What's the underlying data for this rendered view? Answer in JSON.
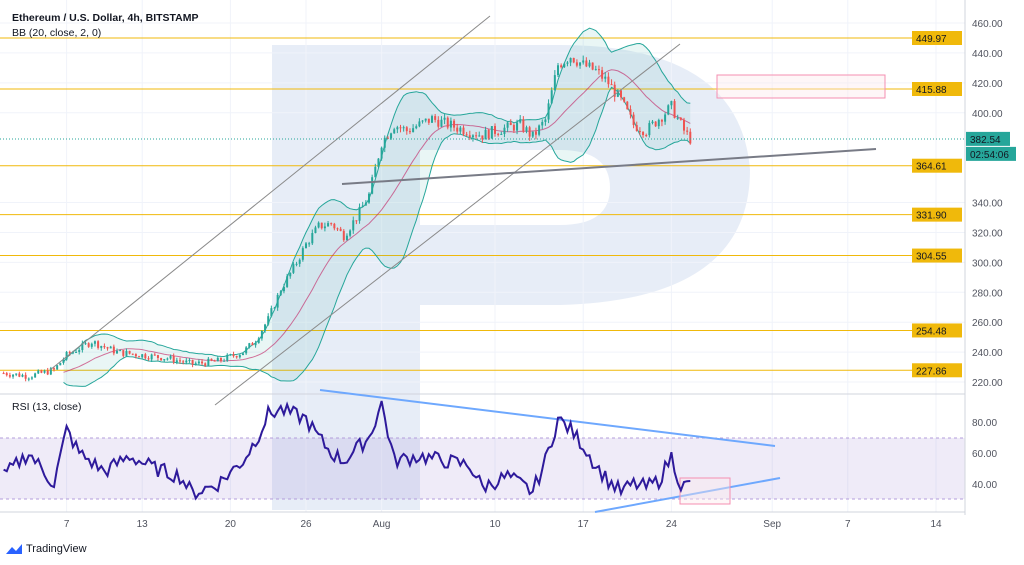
{
  "header": {
    "title": "Ethereum / U.S. Dollar, 4h, BITSTAMP",
    "indicator": "BB (20, close, 2, 0)"
  },
  "rsi_label": "RSI (13, close)",
  "brand": "TradingView",
  "colors": {
    "up": "#26a69a",
    "down": "#ef5350",
    "level": "#f0b90b",
    "bb": "#26a69a",
    "rsi": "#2e1a9b",
    "trend": "#6ea8fe"
  },
  "chart_data": {
    "type": "candlestick",
    "title": "Ethereum / U.S. Dollar, 4h, BITSTAMP",
    "ylim": [
      215,
      465
    ],
    "y_ticks": [
      "460.00",
      "440.00",
      "420.00",
      "400.00",
      "340.00",
      "320.00",
      "300.00",
      "280.00",
      "260.00",
      "240.00",
      "220.00"
    ],
    "y_tick_values": [
      460,
      440,
      420,
      400,
      340,
      320,
      300,
      280,
      260,
      240,
      220
    ],
    "x_ticks": [
      "7",
      "13",
      "20",
      "26",
      "Aug",
      "10",
      "17",
      "24",
      "Sep",
      "7",
      "14"
    ],
    "x_tick_days": [
      6,
      12,
      19,
      25,
      31,
      40,
      47,
      54,
      62,
      68,
      75
    ],
    "price_keypoints_day_price": [
      [
        1,
        226
      ],
      [
        3,
        224
      ],
      [
        5,
        228
      ],
      [
        6,
        238
      ],
      [
        8,
        247
      ],
      [
        10,
        240
      ],
      [
        12,
        238
      ],
      [
        14,
        236
      ],
      [
        16,
        232
      ],
      [
        18,
        234
      ],
      [
        20,
        240
      ],
      [
        21,
        248
      ],
      [
        22,
        262
      ],
      [
        23,
        282
      ],
      [
        24,
        296
      ],
      [
        25,
        312
      ],
      [
        26,
        324
      ],
      [
        27,
        326
      ],
      [
        28,
        318
      ],
      [
        29,
        330
      ],
      [
        30,
        345
      ],
      [
        31,
        380
      ],
      [
        32,
        392
      ],
      [
        33,
        388
      ],
      [
        35,
        396
      ],
      [
        37,
        390
      ],
      [
        39,
        385
      ],
      [
        40,
        388
      ],
      [
        42,
        392
      ],
      [
        43,
        384
      ],
      [
        44,
        395
      ],
      [
        45,
        432
      ],
      [
        46,
        438
      ],
      [
        47,
        432
      ],
      [
        48,
        428
      ],
      [
        49,
        420
      ],
      [
        50,
        408
      ],
      [
        51,
        392
      ],
      [
        52,
        388
      ],
      [
        53,
        396
      ],
      [
        54,
        404
      ],
      [
        55,
        388
      ],
      [
        55.5,
        382.54
      ]
    ],
    "horizontal_levels": [
      "449.97",
      "415.88",
      "364.61",
      "331.90",
      "304.55",
      "254.48",
      "227.86"
    ],
    "last_price": "382.54",
    "countdown": "02:54:06",
    "rsi": {
      "label": "RSI (13, close)",
      "ticks": [
        "80.00",
        "60.00",
        "40.00"
      ],
      "tick_values": [
        80,
        60,
        40
      ],
      "band": [
        30,
        70
      ],
      "keypoints_day_value": [
        [
          1,
          45
        ],
        [
          3,
          60
        ],
        [
          5,
          40
        ],
        [
          6,
          75
        ],
        [
          7,
          60
        ],
        [
          9,
          48
        ],
        [
          11,
          58
        ],
        [
          13,
          50
        ],
        [
          15,
          45
        ],
        [
          16,
          34
        ],
        [
          18,
          40
        ],
        [
          20,
          55
        ],
        [
          21,
          68
        ],
        [
          22,
          85
        ],
        [
          23,
          88
        ],
        [
          25,
          82
        ],
        [
          26,
          70
        ],
        [
          27,
          60
        ],
        [
          28,
          55
        ],
        [
          30,
          70
        ],
        [
          31,
          92
        ],
        [
          32,
          55
        ],
        [
          34,
          58
        ],
        [
          36,
          55
        ],
        [
          38,
          52
        ],
        [
          39,
          38
        ],
        [
          41,
          45
        ],
        [
          43,
          35
        ],
        [
          44,
          55
        ],
        [
          45,
          82
        ],
        [
          46,
          75
        ],
        [
          47,
          65
        ],
        [
          48,
          52
        ],
        [
          49,
          42
        ],
        [
          50,
          35
        ],
        [
          51,
          40
        ],
        [
          52,
          38
        ],
        [
          53,
          42
        ],
        [
          54,
          58
        ],
        [
          54.8,
          38
        ],
        [
          55.5,
          40
        ]
      ]
    }
  }
}
